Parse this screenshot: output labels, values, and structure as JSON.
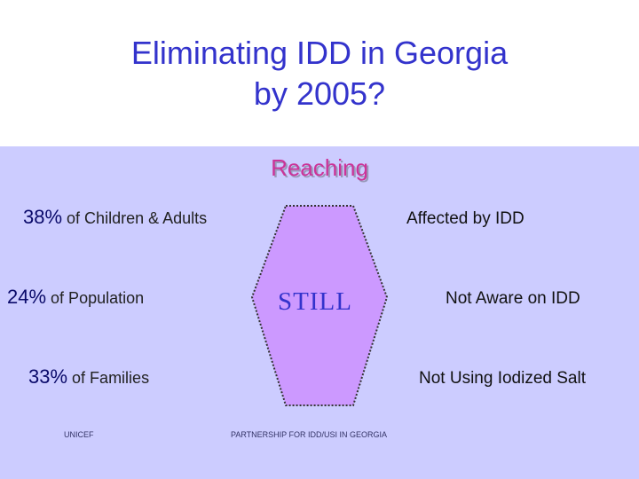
{
  "slide": {
    "title_line1": "Eliminating IDD in Georgia",
    "title_line2": "by 2005?",
    "heading": "Reaching",
    "center_label": "STILL",
    "stats": [
      {
        "percent": "38%",
        "description": " of Children & Adults"
      },
      {
        "percent": "24%",
        "description": " of Population"
      },
      {
        "percent": "33%",
        "description": " of Families"
      }
    ],
    "conditions": [
      "Affected by IDD",
      "Not Aware on IDD",
      "Not Using Iodized Salt"
    ],
    "footer_left": "UNICEF",
    "footer_center": "PARTNERSHIP FOR IDD/USI IN GEORGIA"
  },
  "colors": {
    "title": "#3333cc",
    "background_content": "#ccccff",
    "heading": "#cc3399",
    "hexagon_fill": "#cc99ff",
    "still": "#3333cc"
  }
}
